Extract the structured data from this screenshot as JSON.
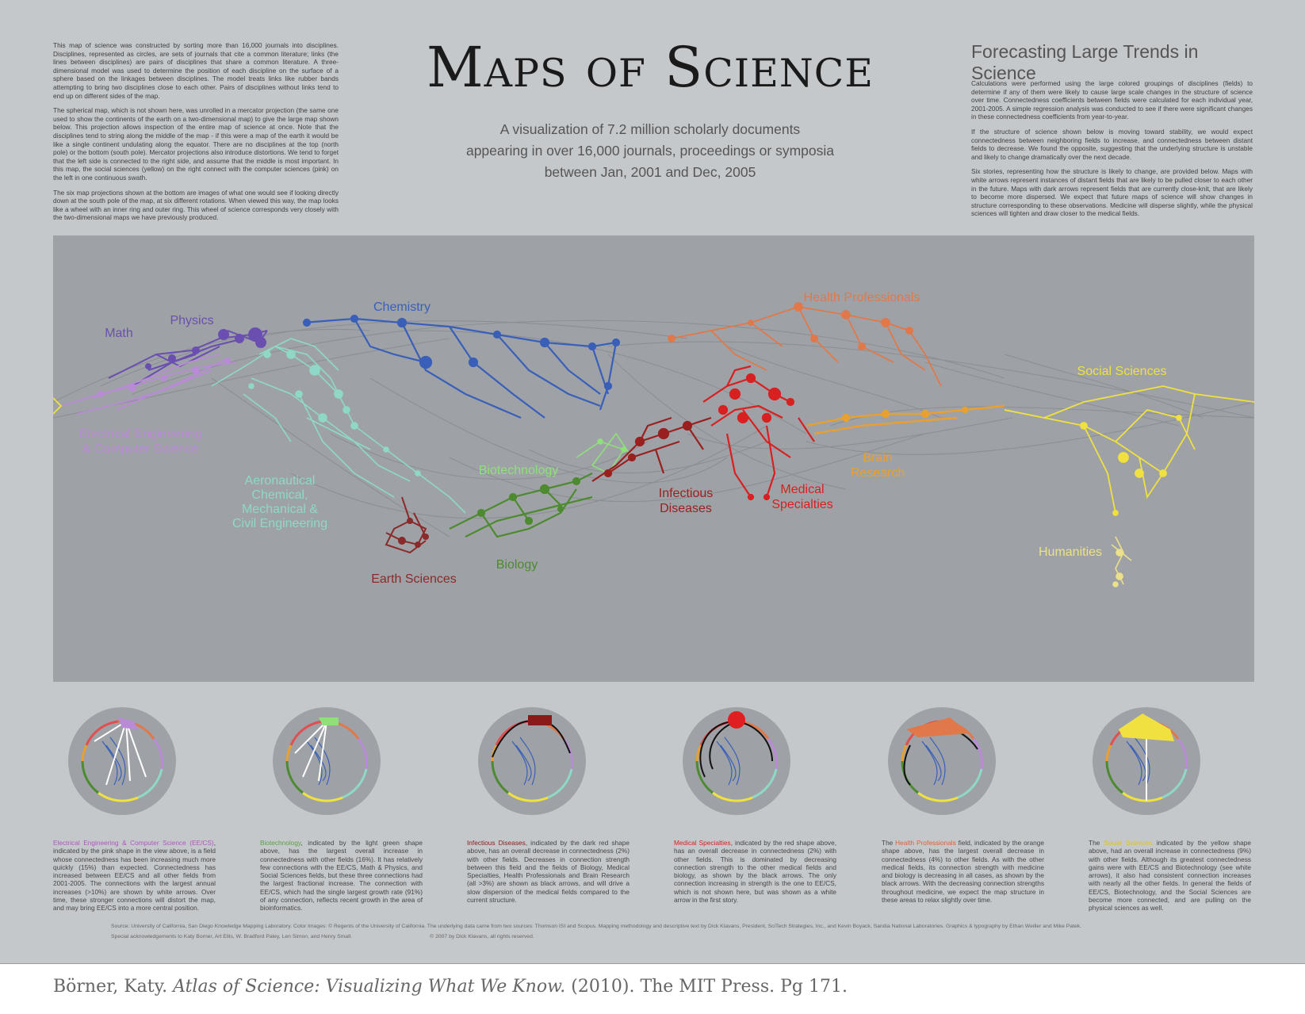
{
  "title": "Maps of Science",
  "subtitle_lines": [
    "A visualization of 7.2 million scholarly documents",
    "appearing in over 16,000 journals, proceedings or symposia",
    "between Jan, 2001 and Dec, 2005"
  ],
  "left_intro": [
    "This map of science was constructed by sorting more than 16,000 journals into disciplines. Disciplines, represented as circles, are sets of journals that cite a common literature; links (the lines between disciplines) are pairs of disciplines that share a common literature. A three-dimensional model was used to determine the position of each discipline on the surface of a sphere based on the linkages between disciplines. The model treats links like rubber bands attempting to bring two disciplines close to each other. Pairs of disciplines without links tend to end up on different sides of the map.",
    "The spherical map, which is not shown here, was unrolled in a mercator projection (the same one used to show the continents of the earth on a two-dimensional map) to give the large map shown below. This projection allows inspection of the entire map of science at once. Note that the disciplines tend to string along the middle of the map - if this were a map of the earth it would be like a single continent undulating along the equator. There are no disciplines at the top (north pole) or the bottom (south pole). Mercator projections also introduce distortions. We tend to forget that the left side is connected to the right side, and assume that the middle is most important. In this map, the social sciences (yellow) on the right connect with the computer sciences (pink) on the left in one continuous swath.",
    "The six map projections shown at the bottom are images of what one would see if looking directly down at the south pole of the map, at six different rotations. When viewed this way, the map looks like a wheel with an inner ring and outer ring. This wheel of science corresponds very closely with the two-dimensional maps we have previously produced."
  ],
  "forecast": {
    "heading": "Forecasting Large Trends in Science",
    "paragraphs": [
      "Calculations were performed using the large colored groupings of disciplines (fields) to determine if any of them were likely to cause large scale changes in the structure of science over time. Connectedness coefficients between fields were calculated for each individual year, 2001-2005. A simple regression analysis was conducted to see if there were significant changes in these connectedness coefficients from year-to-year.",
      "If the structure of science shown below is moving toward stability, we would expect connectedness between neighboring fields to increase, and connectedness between distant fields to decrease. We found the opposite, suggesting that the underlying structure is unstable and likely to change dramatically over the next decade.",
      "Six stories, representing how the structure is likely to change, are provided below. Maps with white arrows represent instances of distant fields that are likely to be pulled closer to each other in the future. Maps with dark arrows represent fields that are currently close-knit, that are likely to become more dispersed. We expect that future maps of science will show changes in structure corresponding to these observations. Medicine will disperse slightly, while the physical sciences will tighten and draw closer to the medical fields."
    ]
  },
  "fields": [
    {
      "id": "math",
      "label": "Math",
      "color": "#6a4fb0"
    },
    {
      "id": "physics",
      "label": "Physics",
      "color": "#6a4fb0"
    },
    {
      "id": "chemistry",
      "label": "Chemistry",
      "color": "#3a5fb8"
    },
    {
      "id": "eecs",
      "label": "Electrical Engineering & Computer Science",
      "label_lines": [
        "Electrical Engineering",
        "& Computer Science"
      ],
      "color": "#b98ad6"
    },
    {
      "id": "engineering",
      "label_lines": [
        "Aeronautical",
        "Chemical,",
        "Mechanical &",
        "Civil Engineering"
      ],
      "color": "#8fd8c8"
    },
    {
      "id": "biotech",
      "label": "Biotechnology",
      "color": "#8fe07a"
    },
    {
      "id": "earth",
      "label": "Earth Sciences",
      "color": "#8a2a2a"
    },
    {
      "id": "biology",
      "label": "Biology",
      "color": "#4d8a30"
    },
    {
      "id": "infectious",
      "label_lines": [
        "Infectious",
        "Diseases"
      ],
      "color": "#9a2020"
    },
    {
      "id": "medical",
      "label_lines": [
        "Medical",
        "Specialties"
      ],
      "color": "#d82020"
    },
    {
      "id": "health",
      "label": "Health Professionals",
      "color": "#e0784a"
    },
    {
      "id": "brain",
      "label_lines": [
        "Brain",
        "Research"
      ],
      "color": "#e8a030"
    },
    {
      "id": "social",
      "label": "Social Sciences",
      "color": "#f0e040"
    },
    {
      "id": "humanities",
      "label": "Humanities",
      "color": "#ece08a"
    }
  ],
  "stories": [
    {
      "highlight": "Electrical Engineering & Computer Science (EE/CS)",
      "highlight_color": "#b053c0",
      "text": ", indicated by the pink shape in the view above, is a field whose connectedness has been increasing much more quickly (15%) than expected. Connectedness has increased between EE/CS and all other fields from 2001-2005. The connections with the largest annual increases (>10%) are shown by white arrows. Over time, these stronger connections will distort the map, and may bring EE/CS into a more central position."
    },
    {
      "highlight": "Biotechnology",
      "highlight_color": "#5aa040",
      "text": ", indicated by the light green shape above, has the largest overall increase in connectedness with other fields (16%). It has relatively few connections with the EE/CS, Math & Physics, and Social Sciences fields, but these three connections had the largest fractional increase. The connection with EE/CS, which had the single largest growth rate (91%) of any connection, reflects recent growth in the area of bioinformatics."
    },
    {
      "highlight": "Infectious Diseases",
      "highlight_color": "#8a1a1a",
      "text": ", indicated by the dark red shape above, has an overall decrease in connectedness (2%) with other fields. Decreases in connection strength between this field and the fields of Biology, Medical Specialties, Health Professionals and Brain Research (all >3%) are shown as black arrows, and will drive a slow dispersion of the medical fields compared to the current structure."
    },
    {
      "highlight": "Medical Specialties",
      "highlight_color": "#d82020",
      "text": ", indicated by the red shape above, has an overall decrease in connectedness (2%) with other fields. This is dominated by decreasing connection strength to the other medical fields and biology, as shown by the black arrows. The only connection increasing in strength is the one to EE/CS, which is not shown here, but was shown as a white arrow in the first story."
    },
    {
      "prefix": "The ",
      "highlight": "Health Professionals",
      "highlight_color": "#e06030",
      "text": " field, indicated by the orange shape above, has the largest overall decrease in connectedness (4%) to other fields. As with the other medical fields, its connection strength with medicine and biology is decreasing in all cases, as shown by the black arrows. With the decreasing connection strengths throughout medicine, we expect the map structure in these areas to relax slightly over time."
    },
    {
      "prefix": "The ",
      "highlight": "Social Sciences",
      "highlight_color": "#e0c020",
      "text": " indicated by the yellow shape above, had an overall increase in connectedness (9%) with other fields. Although its greatest connectedness gains were with EE/CS and Biotechnology (see white arrows), it also had consistent connection increases with nearly all the other fields. In general the fields of EE/CS, Biotechnology, and the Social Sciences are become more connected, and are pulling on the physical sciences as well."
    }
  ],
  "source_lines": [
    "Source: University of California, San Diego Knowledge Mapping Laboratory.   Color Images: © Regents of the University of California.   The underlying data came from two sources: Thomson ISI and Scopus.  Mapping methodology and descriptive text by Dick Klavans, President, SciTech Strategies, Inc., and Kevin Boyack, Sandia National Laboratories.  Graphics & typography by Ethan Weiller and Mike Patek.",
    "Special acknowledgements to Katy Borner, Art Ellis, W. Bradford Paley, Len Simon, and Henry Small.                                                    © 2007 by Dick Klavans, all rights reserved."
  ],
  "citation": {
    "author": "Börner, Katy. ",
    "book": "Atlas of Science: Visualizing What We Know.",
    "rest": " (2010). The MIT Press. Pg 171."
  }
}
